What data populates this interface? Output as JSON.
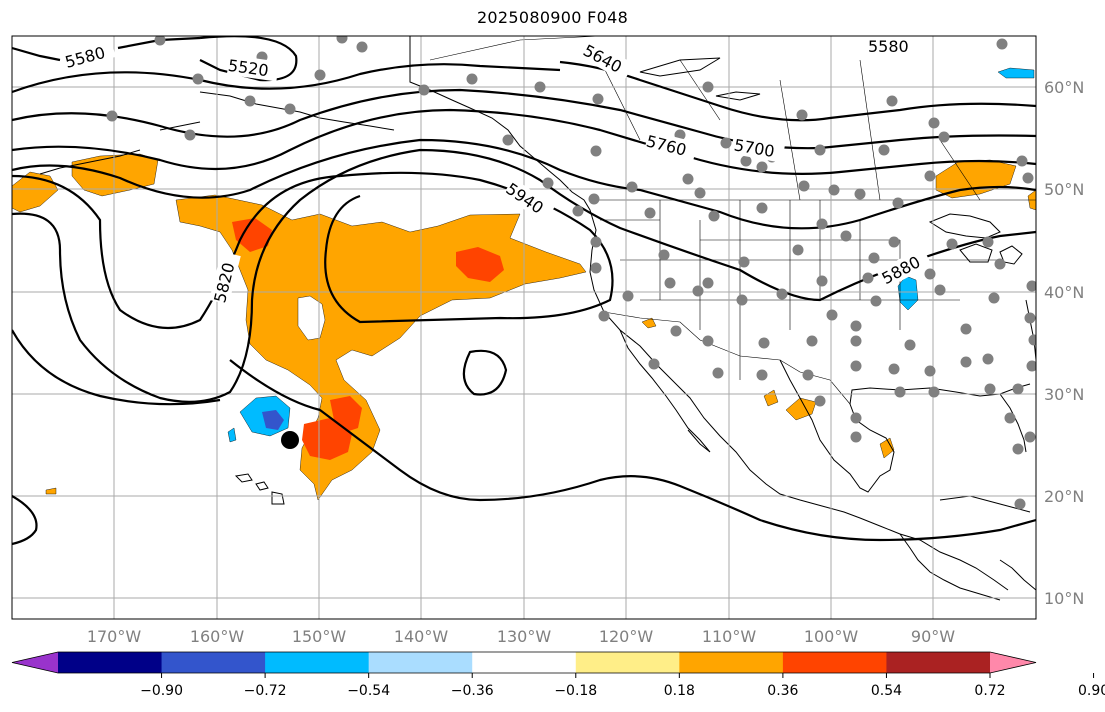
{
  "title": "2025080900 F048",
  "colors": {
    "land_fill": "#ffffff",
    "ocean_fill": "#ffffff",
    "coastline": "#000000",
    "grid": "#aaaaaa",
    "contour": "#000000",
    "station_dot": "#808080",
    "marker": "#000000"
  },
  "lat_labels": [
    "60°N",
    "50°N",
    "40°N",
    "30°N",
    "20°N",
    "10°N"
  ],
  "lon_labels": [
    "170°W",
    "160°W",
    "150°W",
    "140°W",
    "130°W",
    "120°W",
    "110°W",
    "100°W",
    "90°W"
  ],
  "contour_labels": [
    "5580",
    "5520",
    "5640",
    "5580",
    "5760",
    "5700",
    "5940",
    "5820",
    "5880"
  ],
  "colorbar": {
    "ticks": [
      "−0.90",
      "−0.72",
      "−0.54",
      "−0.36",
      "−0.18",
      "0.18",
      "0.36",
      "0.54",
      "0.72",
      "0.90"
    ],
    "colors": [
      "#9933cc",
      "#000088",
      "#3355cc",
      "#00bbff",
      "#aaddff",
      "#ffffff",
      "#ffee88",
      "#ffa500",
      "#ff4400",
      "#aa2222",
      "#ff88aa"
    ]
  }
}
